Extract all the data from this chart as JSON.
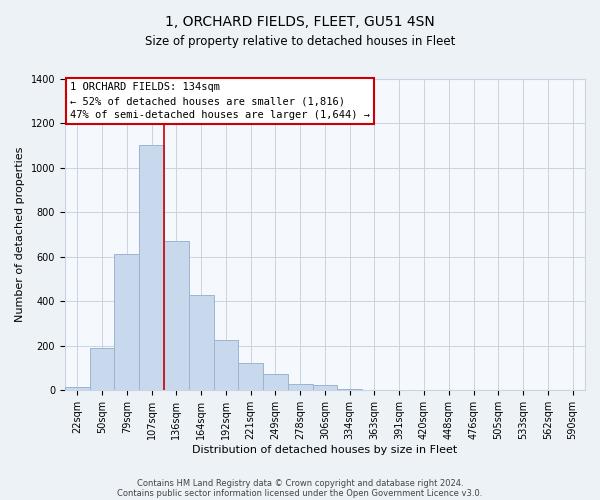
{
  "title": "1, ORCHARD FIELDS, FLEET, GU51 4SN",
  "subtitle": "Size of property relative to detached houses in Fleet",
  "xlabel": "Distribution of detached houses by size in Fleet",
  "ylabel": "Number of detached properties",
  "bar_labels": [
    "22sqm",
    "50sqm",
    "79sqm",
    "107sqm",
    "136sqm",
    "164sqm",
    "192sqm",
    "221sqm",
    "249sqm",
    "278sqm",
    "306sqm",
    "334sqm",
    "363sqm",
    "391sqm",
    "420sqm",
    "448sqm",
    "476sqm",
    "505sqm",
    "533sqm",
    "562sqm",
    "590sqm"
  ],
  "bar_heights": [
    15,
    190,
    615,
    1105,
    670,
    430,
    225,
    125,
    75,
    30,
    22,
    5,
    3,
    0,
    0,
    0,
    0,
    0,
    0,
    0,
    0
  ],
  "bar_color": "#c8d9ed",
  "bar_edge_color": "#9ab5d0",
  "vline_color": "#cc0000",
  "vline_x_index": 3.5,
  "annotation_text_line1": "1 ORCHARD FIELDS: 134sqm",
  "annotation_text_line2": "← 52% of detached houses are smaller (1,816)",
  "annotation_text_line3": "47% of semi-detached houses are larger (1,644) →",
  "ylim": [
    0,
    1400
  ],
  "yticks": [
    0,
    200,
    400,
    600,
    800,
    1000,
    1200,
    1400
  ],
  "footer_line1": "Contains HM Land Registry data © Crown copyright and database right 2024.",
  "footer_line2": "Contains public sector information licensed under the Open Government Licence v3.0.",
  "bg_color": "#edf2f7",
  "plot_bg_color": "#f5f8fc",
  "grid_color": "#c8d4e3",
  "title_fontsize": 10,
  "subtitle_fontsize": 8.5,
  "ylabel_fontsize": 8,
  "xlabel_fontsize": 8,
  "tick_fontsize": 7,
  "annotation_fontsize": 7.5,
  "footer_fontsize": 6
}
